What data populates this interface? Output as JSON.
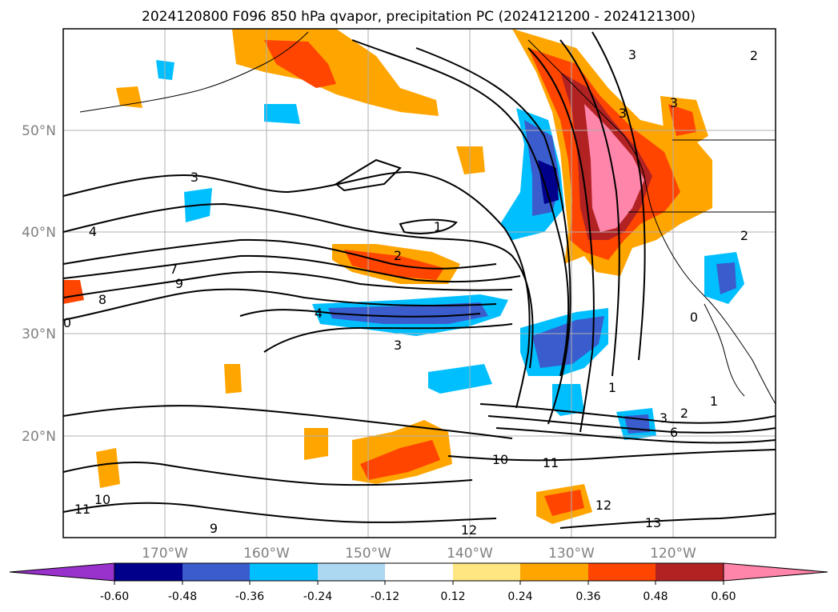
{
  "title": "2024120800 F096 850 hPa qvapor, precipitation PC (2024121200 - 2024121300)",
  "map": {
    "lat_ticks": [
      {
        "lat": 50,
        "label": "50°N"
      },
      {
        "lat": 40,
        "label": "40°N"
      },
      {
        "lat": 30,
        "label": "30°N"
      },
      {
        "lat": 20,
        "label": "20°N"
      }
    ],
    "lon_ticks": [
      {
        "lon": -170,
        "label": "170°W"
      },
      {
        "lon": -160,
        "label": "160°W"
      },
      {
        "lon": -150,
        "label": "150°W"
      },
      {
        "lon": -140,
        "label": "140°W"
      },
      {
        "lon": -130,
        "label": "130°W"
      },
      {
        "lon": -120,
        "label": "120°W"
      }
    ],
    "contour_labels": [
      "3",
      "4",
      "7",
      "9",
      "8",
      "0",
      "4",
      "2",
      "3",
      "1",
      "3",
      "3",
      "3",
      "2",
      "1",
      "1",
      "2",
      "3",
      "6",
      "10",
      "11",
      "10",
      "11",
      "9",
      "12",
      "12",
      "13",
      "0",
      "2"
    ]
  },
  "colorbar": {
    "levels": [
      "-0.60",
      "-0.48",
      "-0.36",
      "-0.24",
      "-0.12",
      "0.12",
      "0.24",
      "0.36",
      "0.48",
      "0.60"
    ],
    "colors": [
      "#9932cc",
      "#00008b",
      "#3a5ccc",
      "#00bfff",
      "#add8f2",
      "#ffffff",
      "#ffe680",
      "#ffa500",
      "#ff4500",
      "#b22222",
      "#ff85aa"
    ]
  }
}
